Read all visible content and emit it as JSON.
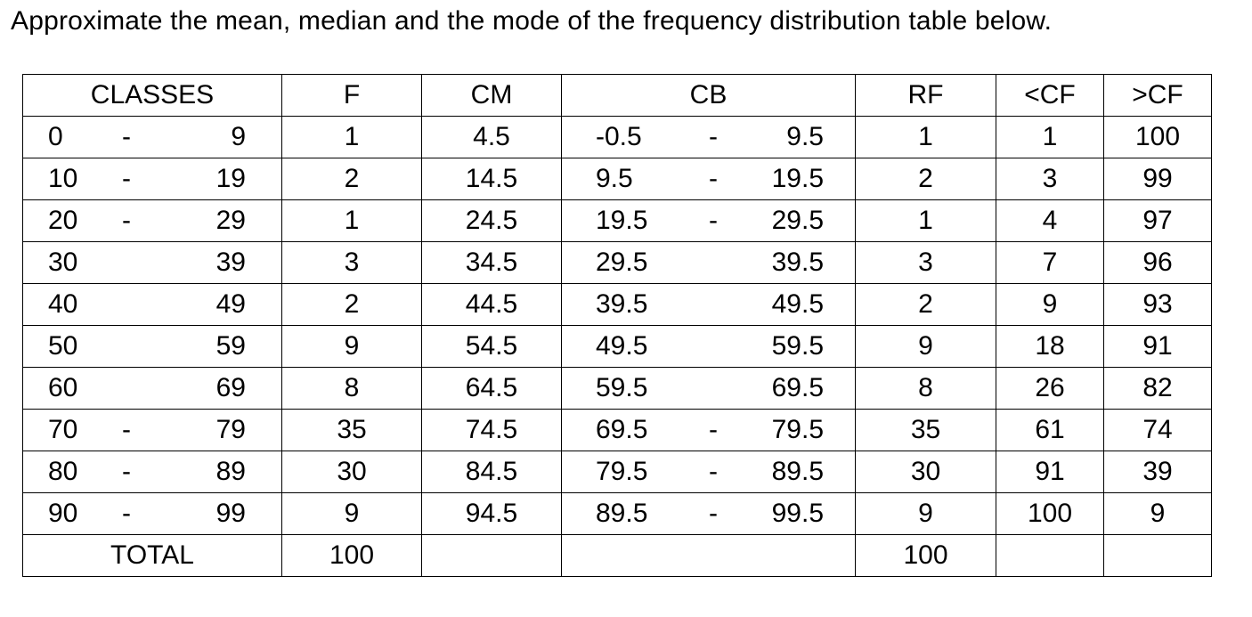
{
  "question": "Approximate the mean, median and the mode of the frequency distribution table below.",
  "table": {
    "headers": {
      "classes": "CLASSES",
      "f": "F",
      "cm": "CM",
      "cb": "CB",
      "rf": "RF",
      "lcf": "<CF",
      "gcf": ">CF"
    },
    "rows": [
      {
        "cls_lo": "0",
        "cls_dash": "-",
        "cls_hi": "9",
        "f": "1",
        "cm": "4.5",
        "cb_lo": "-0.5",
        "cb_dash": "-",
        "cb_hi": "9.5",
        "rf": "1",
        "lcf": "1",
        "gcf": "100"
      },
      {
        "cls_lo": "10",
        "cls_dash": "-",
        "cls_hi": "19",
        "f": "2",
        "cm": "14.5",
        "cb_lo": "9.5",
        "cb_dash": "-",
        "cb_hi": "19.5",
        "rf": "2",
        "lcf": "3",
        "gcf": "99"
      },
      {
        "cls_lo": "20",
        "cls_dash": "-",
        "cls_hi": "29",
        "f": "1",
        "cm": "24.5",
        "cb_lo": "19.5",
        "cb_dash": "-",
        "cb_hi": "29.5",
        "rf": "1",
        "lcf": "4",
        "gcf": "97"
      },
      {
        "cls_lo": "30",
        "cls_dash": "",
        "cls_hi": "39",
        "f": "3",
        "cm": "34.5",
        "cb_lo": "29.5",
        "cb_dash": "",
        "cb_hi": "39.5",
        "rf": "3",
        "lcf": "7",
        "gcf": "96"
      },
      {
        "cls_lo": "40",
        "cls_dash": "",
        "cls_hi": "49",
        "f": "2",
        "cm": "44.5",
        "cb_lo": "39.5",
        "cb_dash": "",
        "cb_hi": "49.5",
        "rf": "2",
        "lcf": "9",
        "gcf": "93"
      },
      {
        "cls_lo": "50",
        "cls_dash": "",
        "cls_hi": "59",
        "f": "9",
        "cm": "54.5",
        "cb_lo": "49.5",
        "cb_dash": "",
        "cb_hi": "59.5",
        "rf": "9",
        "lcf": "18",
        "gcf": "91"
      },
      {
        "cls_lo": "60",
        "cls_dash": "",
        "cls_hi": "69",
        "f": "8",
        "cm": "64.5",
        "cb_lo": "59.5",
        "cb_dash": "",
        "cb_hi": "69.5",
        "rf": "8",
        "lcf": "26",
        "gcf": "82"
      },
      {
        "cls_lo": "70",
        "cls_dash": "-",
        "cls_hi": "79",
        "f": "35",
        "cm": "74.5",
        "cb_lo": "69.5",
        "cb_dash": "-",
        "cb_hi": "79.5",
        "rf": "35",
        "lcf": "61",
        "gcf": "74"
      },
      {
        "cls_lo": "80",
        "cls_dash": "-",
        "cls_hi": "89",
        "f": "30",
        "cm": "84.5",
        "cb_lo": "79.5",
        "cb_dash": "-",
        "cb_hi": "89.5",
        "rf": "30",
        "lcf": "91",
        "gcf": "39"
      },
      {
        "cls_lo": "90",
        "cls_dash": "-",
        "cls_hi": "99",
        "f": "9",
        "cm": "94.5",
        "cb_lo": "89.5",
        "cb_dash": "-",
        "cb_hi": "99.5",
        "rf": "9",
        "lcf": "100",
        "gcf": "9"
      }
    ],
    "total": {
      "label": "TOTAL",
      "f": "100",
      "cm": "",
      "cb": "",
      "rf": "100",
      "lcf": "",
      "gcf": ""
    }
  }
}
